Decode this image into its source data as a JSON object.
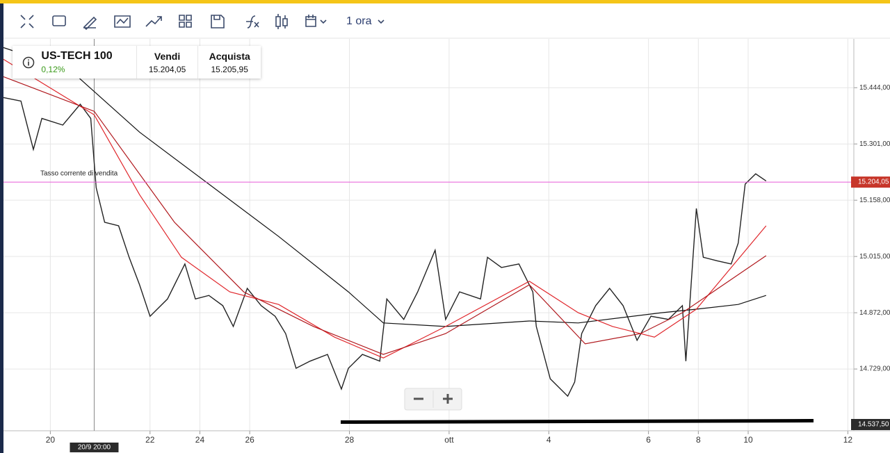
{
  "toolbar": {
    "interval": "1 ora"
  },
  "instrument": {
    "name": "US-TECH 100",
    "change": "0,12%",
    "sell_label": "Vendi",
    "sell_price": "15.204,05",
    "buy_label": "Acquista",
    "buy_price": "15.205,95"
  },
  "chart_data": {
    "type": "line",
    "annotation": "Tasso corrente di vendita",
    "crosshair": {
      "x": 0.88,
      "label": "20/9 20:00"
    },
    "current_price": {
      "value": 15204.05,
      "label": "15.204,05",
      "color": "#e75ad8"
    },
    "price_tag": {
      "value": 14537.5,
      "label": "14.537,50"
    },
    "support_line": {
      "value": 14594,
      "color": "#000000"
    },
    "xlim": [
      -0.94,
      16.12
    ],
    "ylim": [
      14572,
      15568
    ],
    "xticks": [
      {
        "value": 0,
        "label": "20"
      },
      {
        "value": 2,
        "label": "22"
      },
      {
        "value": 3,
        "label": "24"
      },
      {
        "value": 4,
        "label": "26"
      },
      {
        "value": 6,
        "label": "28"
      },
      {
        "value": 8,
        "label": "ott"
      },
      {
        "value": 10,
        "label": "4"
      },
      {
        "value": 12,
        "label": "6"
      },
      {
        "value": 13,
        "label": "8"
      },
      {
        "value": 14,
        "label": "10"
      },
      {
        "value": 16,
        "label": "12"
      }
    ],
    "yticks": [
      {
        "value": 14729,
        "label": "14.729,00"
      },
      {
        "value": 14872,
        "label": "14.872,00"
      },
      {
        "value": 15015,
        "label": "15.015,00"
      },
      {
        "value": 15158,
        "label": "15.158,00"
      },
      {
        "value": 15301,
        "label": "15.301,00"
      },
      {
        "value": 15444,
        "label": "15.444,00"
      }
    ],
    "grid": true,
    "series": [
      {
        "color": "#222222",
        "x": [
          -0.94,
          -0.59,
          -0.34,
          -0.17,
          0.25,
          0.6,
          0.81,
          0.92,
          1.09,
          1.37,
          1.58,
          1.79,
          2.0,
          2.35,
          2.7,
          2.91,
          3.18,
          3.46,
          3.67,
          3.95,
          4.23,
          4.51,
          4.72,
          4.93,
          5.21,
          5.56,
          5.84,
          5.98,
          6.26,
          6.61,
          6.75,
          7.09,
          7.37,
          7.72,
          7.93,
          8.21,
          8.63,
          8.77,
          9.05,
          9.4,
          9.68,
          9.75,
          10.03,
          10.38,
          10.52,
          10.66,
          10.94,
          11.22,
          11.49,
          11.77,
          12.05,
          12.4,
          12.68,
          12.75,
          12.96,
          13.1,
          13.38,
          13.66,
          13.8,
          13.94,
          14.15,
          14.36
        ],
        "values": [
          15419,
          15410,
          15287,
          15366,
          15349,
          15402,
          15366,
          15190,
          15102,
          15093,
          15013,
          14943,
          14863,
          14907,
          14996,
          14907,
          14916,
          14890,
          14837,
          14934,
          14890,
          14863,
          14819,
          14731,
          14749,
          14766,
          14678,
          14731,
          14766,
          14749,
          14907,
          14855,
          14925,
          15031,
          14855,
          14925,
          14907,
          15013,
          14987,
          14996,
          14925,
          14837,
          14704,
          14660,
          14696,
          14819,
          14890,
          14934,
          14890,
          14802,
          14863,
          14855,
          14890,
          14749,
          15137,
          15013,
          15004,
          14996,
          15049,
          15199,
          15225,
          15207
        ]
      },
      {
        "color": "#111111",
        "x": [
          -0.94,
          0.39,
          1.79,
          3.18,
          4.58,
          5.98,
          6.68,
          7.93,
          9.61,
          10.59,
          12.26,
          12.96,
          13.8,
          14.36
        ],
        "values": [
          15546,
          15490,
          15331,
          15199,
          15066,
          14925,
          14846,
          14837,
          14851,
          14846,
          14872,
          14881,
          14893,
          14916
        ]
      },
      {
        "color": "#e0262b",
        "x": [
          -0.94,
          0.88,
          1.79,
          2.63,
          3.6,
          4.58,
          5.7,
          6.68,
          7.93,
          9.61,
          10.59,
          11.28,
          12.12,
          12.96,
          14.36
        ],
        "values": [
          15516,
          15375,
          15172,
          15013,
          14925,
          14893,
          14810,
          14757,
          14837,
          14952,
          14872,
          14837,
          14810,
          14881,
          15093
        ]
      },
      {
        "color": "#b0171c",
        "x": [
          -0.94,
          0.88,
          2.49,
          3.88,
          5.28,
          6.68,
          7.93,
          9.61,
          10.73,
          11.84,
          12.68,
          14.36
        ],
        "values": [
          15472,
          15384,
          15102,
          14925,
          14837,
          14766,
          14819,
          14943,
          14793,
          14819,
          14872,
          15017
        ]
      }
    ]
  }
}
